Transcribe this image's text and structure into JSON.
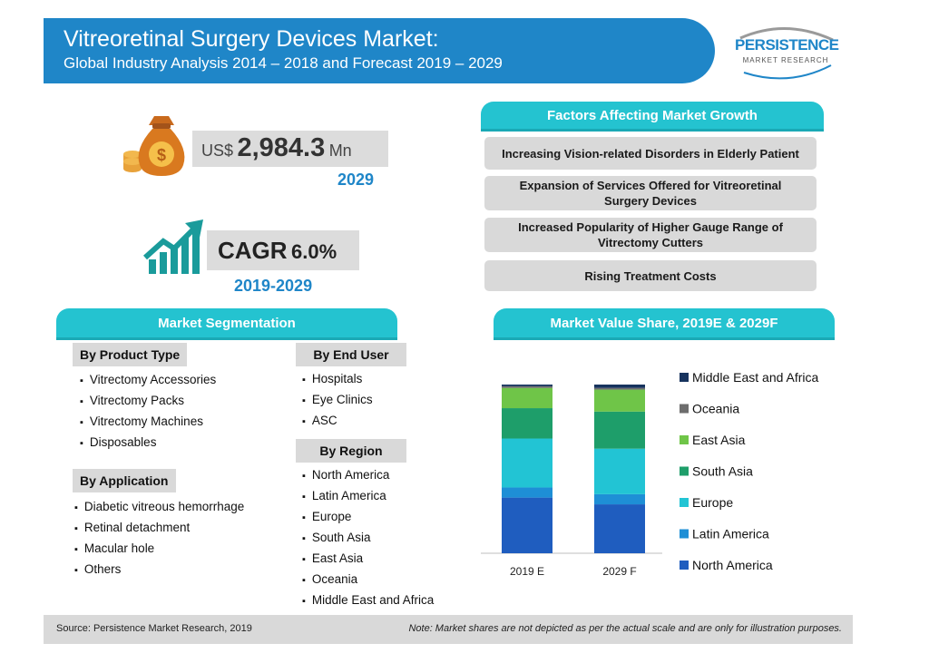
{
  "header": {
    "title": "Vitreoretinal Surgery Devices Market:",
    "subtitle": "Global Industry Analysis 2014 – 2018 and Forecast 2019 – 2029"
  },
  "logo": {
    "name": "PERSISTENCE",
    "tagline": "MARKET RESEARCH"
  },
  "kpis": {
    "market_value": {
      "currency": "US$",
      "value": "2,984.3",
      "unit": "Mn",
      "year": "2029"
    },
    "cagr": {
      "label": "CAGR",
      "value": "6.0%",
      "period": "2019-2029"
    }
  },
  "factors": {
    "title": "Factors Affecting Market Growth",
    "items": [
      "Increasing Vision-related Disorders in Elderly Patient",
      "Expansion of Services Offered for Vitreoretinal Surgery Devices",
      "Increased Popularity of Higher Gauge Range of Vitrectomy Cutters",
      "Rising Treatment Costs"
    ]
  },
  "segmentation": {
    "title": "Market Segmentation",
    "product_type": {
      "title": "By Product Type",
      "items": [
        "Vitrectomy Accessories",
        "Vitrectomy Packs",
        "Vitrectomy Machines",
        "Disposables"
      ]
    },
    "application": {
      "title": "By Application",
      "items": [
        "Diabetic vitreous hemorrhage",
        "Retinal detachment",
        "Macular hole",
        "Others"
      ]
    },
    "end_user": {
      "title": "By End User",
      "items": [
        "Hospitals",
        "Eye Clinics",
        "ASC"
      ]
    },
    "region": {
      "title": "By Region",
      "items": [
        "North America",
        "Latin America",
        "Europe",
        "South Asia",
        "East Asia",
        "Oceania",
        "Middle East and Africa"
      ]
    }
  },
  "share": {
    "title": "Market Value Share, 2019E & 2029F"
  },
  "chart_data": {
    "type": "bar",
    "stacked": true,
    "title": "Market Value Share, 2019E & 2029F",
    "categories": [
      "2019 E",
      "2029 F"
    ],
    "ylim": [
      0,
      100
    ],
    "legend_position": "right",
    "series": [
      {
        "name": "North America",
        "color": "#1f5dbf",
        "values": [
          33,
          29
        ]
      },
      {
        "name": "Latin America",
        "color": "#1e8fd6",
        "values": [
          6,
          6
        ]
      },
      {
        "name": "Europe",
        "color": "#22c4d4",
        "values": [
          29,
          27
        ]
      },
      {
        "name": "South Asia",
        "color": "#1e9e6a",
        "values": [
          18,
          22
        ]
      },
      {
        "name": "East Asia",
        "color": "#6fc548",
        "values": [
          12,
          13
        ]
      },
      {
        "name": "Oceania",
        "color": "#6d6d6d",
        "values": [
          1,
          1
        ]
      },
      {
        "name": "Middle East and Africa",
        "color": "#17335e",
        "values": [
          1,
          2
        ]
      }
    ]
  },
  "footer": {
    "source": "Source: Persistence Market Research, 2019",
    "note": "Note: Market shares are not depicted as per the actual scale and are only for illustration purposes."
  }
}
